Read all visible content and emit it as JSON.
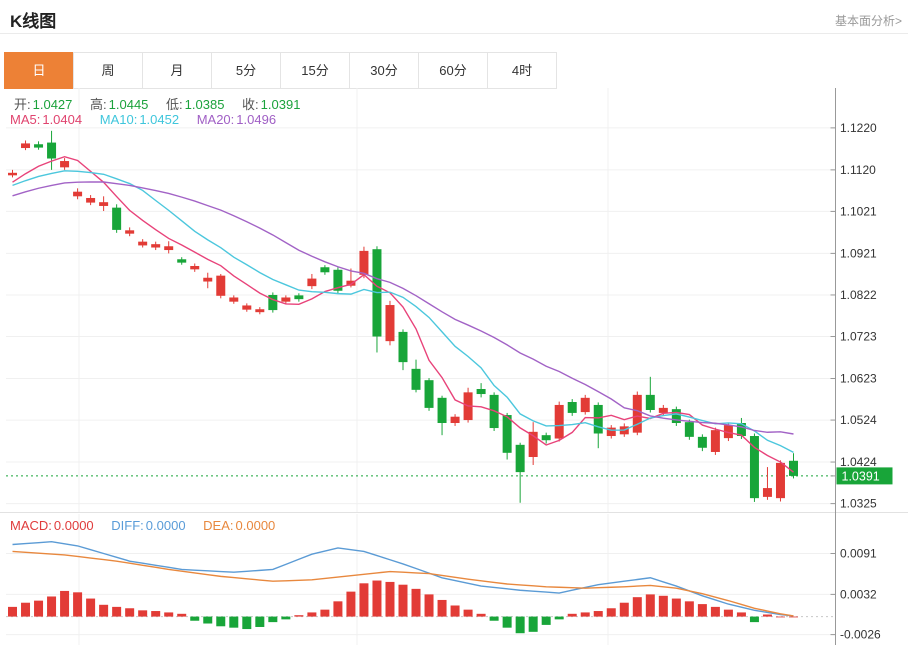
{
  "header": {
    "title": "K线图",
    "analysis_link": "基本面分析>"
  },
  "tabs": {
    "items": [
      "日",
      "周",
      "月",
      "5分",
      "15分",
      "30分",
      "60分",
      "4时"
    ],
    "active_index": 0,
    "active_color": "#ed8136"
  },
  "legend": {
    "ohlc": [
      {
        "label": "开:",
        "value": "1.0427"
      },
      {
        "label": "高:",
        "value": "1.0445"
      },
      {
        "label": "低:",
        "value": "1.0385"
      },
      {
        "label": "收:",
        "value": "1.0391"
      }
    ],
    "ma": [
      {
        "label": "MA5:",
        "value": "1.0404"
      },
      {
        "label": "MA10:",
        "value": "1.0452"
      },
      {
        "label": "MA20:",
        "value": "1.0496"
      }
    ],
    "macd": [
      {
        "label": "MACD:",
        "value": "0.0000"
      },
      {
        "label": "DIFF:",
        "value": "0.0000"
      },
      {
        "label": "DEA:",
        "value": "0.0000"
      }
    ]
  },
  "colors": {
    "up_candle": "#e23b36",
    "down_candle": "#18a539",
    "ma5_line": "#e8437a",
    "ma10_line": "#4cc7dd",
    "ma20_line": "#a263c6",
    "diff_line": "#5b9bd5",
    "dea_line": "#e8883e",
    "grid": "#f0f0f0",
    "axis": "#999999",
    "axis_text": "#333333",
    "current_price_bg": "#18a539",
    "pane_divider": "#e2e2e2",
    "zero_dotted": "#c8c8c8"
  },
  "chart_data": {
    "type": "candlestick+macd",
    "title": "K线图 (daily EUR-style FX K-line with MA5/MA10/MA20 and MACD)",
    "main_pane": {
      "y_axis_labels": [
        "1.1220",
        "1.1120",
        "1.1021",
        "1.0921",
        "1.0822",
        "1.0723",
        "1.0623",
        "1.0524",
        "1.0424",
        "1.0325"
      ],
      "current_price_label": "1.0391",
      "current_price": 1.0391,
      "price_range": [
        1.0305,
        1.1315
      ],
      "grid": true,
      "legend_position": "top-left",
      "candles_ohlc_note": "arrays are [open, high, low, close]; close<open renders green (down), close>open renders red (up)",
      "candles": [
        [
          1.1107,
          1.112,
          1.1102,
          1.1113
        ],
        [
          1.1172,
          1.119,
          1.1167,
          1.1183
        ],
        [
          1.1181,
          1.1188,
          1.1168,
          1.1173
        ],
        [
          1.1185,
          1.1213,
          1.112,
          1.1147
        ],
        [
          1.1126,
          1.1148,
          1.112,
          1.1141
        ],
        [
          1.1057,
          1.1076,
          1.105,
          1.1068
        ],
        [
          1.1042,
          1.106,
          1.1036,
          1.1053
        ],
        [
          1.1034,
          1.1057,
          1.1022,
          1.1043
        ],
        [
          1.103,
          1.1038,
          1.097,
          1.0977
        ],
        [
          1.0968,
          1.0983,
          1.0962,
          1.0976
        ],
        [
          1.094,
          1.0955,
          1.0935,
          1.0949
        ],
        [
          1.0935,
          1.0949,
          1.0929,
          1.0943
        ],
        [
          1.0929,
          1.095,
          1.0921,
          1.0938
        ],
        [
          1.0907,
          1.0912,
          1.0894,
          1.0899
        ],
        [
          1.0883,
          1.0897,
          1.0877,
          1.0891
        ],
        [
          1.0854,
          1.0875,
          1.0838,
          1.0863
        ],
        [
          1.082,
          1.0872,
          1.0814,
          1.0868
        ],
        [
          1.0806,
          1.0821,
          1.0801,
          1.0816
        ],
        [
          1.0787,
          1.0802,
          1.0782,
          1.0797
        ],
        [
          1.0781,
          1.0793,
          1.0776,
          1.0788
        ],
        [
          1.0822,
          1.0828,
          1.078,
          1.0786
        ],
        [
          1.0806,
          1.0821,
          1.08,
          1.0816
        ],
        [
          1.0821,
          1.0826,
          1.0806,
          1.0812
        ],
        [
          1.0843,
          1.0872,
          1.0836,
          1.0861
        ],
        [
          1.0888,
          1.0893,
          1.087,
          1.0876
        ],
        [
          1.0882,
          1.0888,
          1.0826,
          1.0832
        ],
        [
          1.0844,
          1.0885,
          1.084,
          1.0856
        ],
        [
          1.087,
          1.0937,
          1.0862,
          1.0927
        ],
        [
          1.0931,
          1.0938,
          1.0685,
          1.0723
        ],
        [
          1.0712,
          1.0808,
          1.0702,
          1.0798
        ],
        [
          1.0734,
          1.074,
          1.0643,
          1.0662
        ],
        [
          1.0646,
          1.0668,
          1.059,
          1.0596
        ],
        [
          1.0619,
          1.0624,
          1.0546,
          1.0553
        ],
        [
          1.0577,
          1.0582,
          1.0488,
          1.0517
        ],
        [
          1.0517,
          1.0538,
          1.051,
          1.0532
        ],
        [
          1.0524,
          1.0601,
          1.0518,
          1.059
        ],
        [
          1.0598,
          1.0612,
          1.0578,
          1.0586
        ],
        [
          1.0584,
          1.059,
          1.0498,
          1.0505
        ],
        [
          1.0536,
          1.0541,
          1.043,
          1.0446
        ],
        [
          1.0465,
          1.047,
          1.0327,
          1.04
        ],
        [
          1.0436,
          1.0519,
          1.0417,
          1.0496
        ],
        [
          1.0488,
          1.0494,
          1.0468,
          1.0476
        ],
        [
          1.048,
          1.0568,
          1.0473,
          1.056
        ],
        [
          1.0567,
          1.0574,
          1.0534,
          1.0541
        ],
        [
          1.0543,
          1.0584,
          1.0537,
          1.0577
        ],
        [
          1.056,
          1.0566,
          1.0457,
          1.0492
        ],
        [
          1.0486,
          1.0512,
          1.048,
          1.0506
        ],
        [
          1.049,
          1.0516,
          1.0484,
          1.0509
        ],
        [
          1.0494,
          1.0592,
          1.0488,
          1.0584
        ],
        [
          1.0584,
          1.0627,
          1.0542,
          1.0548
        ],
        [
          1.0541,
          1.056,
          1.0535,
          1.0553
        ],
        [
          1.055,
          1.0556,
          1.051,
          1.0517
        ],
        [
          1.0519,
          1.0525,
          1.0477,
          1.0484
        ],
        [
          1.0484,
          1.049,
          1.045,
          1.0458
        ],
        [
          1.0448,
          1.0506,
          1.0441,
          1.05
        ],
        [
          1.0481,
          1.0518,
          1.0474,
          1.0512
        ],
        [
          1.0517,
          1.0529,
          1.0479,
          1.0486
        ],
        [
          1.0486,
          1.0492,
          1.0329,
          1.0338
        ],
        [
          1.0341,
          1.0412,
          1.0334,
          1.0362
        ],
        [
          1.0338,
          1.0428,
          1.033,
          1.0422
        ],
        [
          1.0427,
          1.0445,
          1.0385,
          1.0391
        ]
      ],
      "ma_windows": [
        5,
        10,
        20
      ],
      "ma_seed_prehistory": [
        1.098,
        1.0992,
        1.1002,
        1.1012,
        1.1022,
        1.1032,
        1.104,
        1.1048,
        1.1056,
        1.1062,
        1.1066,
        1.107,
        1.1073,
        1.1076,
        1.1078,
        1.108,
        1.1082,
        1.1084,
        1.1086,
        1.1088
      ],
      "vertical_gridlines_x": [
        79,
        357,
        608
      ]
    },
    "macd_pane": {
      "y_axis_labels": [
        "0.0091",
        "0.0032",
        "-0.0026"
      ],
      "value_range": [
        -0.0041,
        0.0148
      ],
      "histogram": [
        0.0014,
        0.002,
        0.0023,
        0.0029,
        0.0037,
        0.0035,
        0.0026,
        0.0017,
        0.0014,
        0.0012,
        0.0009,
        0.0008,
        0.0006,
        0.0004,
        -0.0006,
        -0.001,
        -0.0014,
        -0.0016,
        -0.0018,
        -0.0015,
        -0.0008,
        -0.0004,
        0.0002,
        0.0006,
        0.001,
        0.0022,
        0.0036,
        0.0048,
        0.0052,
        0.005,
        0.0046,
        0.004,
        0.0032,
        0.0024,
        0.0016,
        0.001,
        0.0004,
        -0.0006,
        -0.0016,
        -0.0024,
        -0.0022,
        -0.0012,
        -0.0004,
        0.0004,
        0.0006,
        0.0008,
        0.0012,
        0.002,
        0.0028,
        0.0032,
        0.003,
        0.0026,
        0.0022,
        0.0018,
        0.0014,
        0.001,
        0.0006,
        -0.0008,
        0.0003,
        0.0,
        0.0
      ],
      "diff_points": [
        [
          0,
          0.0104
        ],
        [
          3,
          0.0108
        ],
        [
          5,
          0.0102
        ],
        [
          9,
          0.008
        ],
        [
          13,
          0.0068
        ],
        [
          17,
          0.0064
        ],
        [
          20,
          0.0068
        ],
        [
          23,
          0.009
        ],
        [
          25,
          0.0099
        ],
        [
          27,
          0.0094
        ],
        [
          30,
          0.0076
        ],
        [
          33,
          0.0056
        ],
        [
          36,
          0.0044
        ],
        [
          39,
          0.0038
        ],
        [
          42,
          0.0034
        ],
        [
          45,
          0.0046
        ],
        [
          49,
          0.0056
        ],
        [
          51,
          0.0044
        ],
        [
          53,
          0.003
        ],
        [
          55,
          0.0018
        ],
        [
          57,
          0.0009
        ],
        [
          59,
          0.0003
        ],
        [
          60,
          0.0001
        ]
      ],
      "dea_points": [
        [
          0,
          0.0094
        ],
        [
          4,
          0.0089
        ],
        [
          8,
          0.008
        ],
        [
          12,
          0.0068
        ],
        [
          16,
          0.0058
        ],
        [
          20,
          0.0051
        ],
        [
          23,
          0.0053
        ],
        [
          26,
          0.0059
        ],
        [
          29,
          0.0065
        ],
        [
          32,
          0.0062
        ],
        [
          35,
          0.0054
        ],
        [
          38,
          0.0047
        ],
        [
          41,
          0.0043
        ],
        [
          44,
          0.0041
        ],
        [
          47,
          0.0043
        ],
        [
          49,
          0.0045
        ],
        [
          51,
          0.0041
        ],
        [
          53,
          0.0033
        ],
        [
          55,
          0.0023
        ],
        [
          57,
          0.0012
        ],
        [
          59,
          0.0004
        ],
        [
          60,
          0.0001
        ]
      ]
    }
  }
}
